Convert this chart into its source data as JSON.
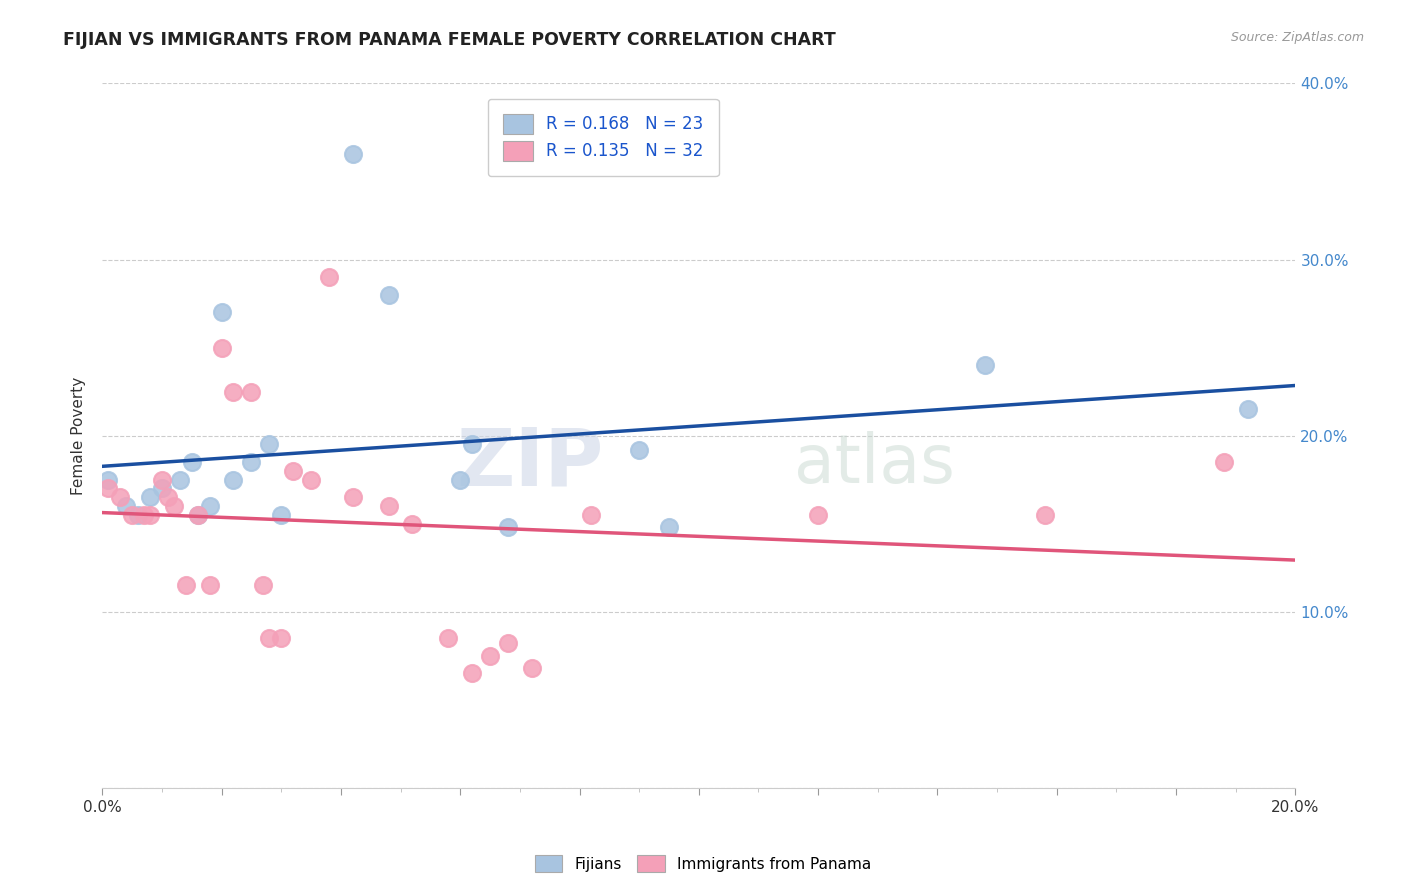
{
  "title": "FIJIAN VS IMMIGRANTS FROM PANAMA FEMALE POVERTY CORRELATION CHART",
  "source": "Source: ZipAtlas.com",
  "ylabel": "Female Poverty",
  "xlim": [
    0.0,
    0.2
  ],
  "ylim": [
    0.0,
    0.4
  ],
  "fijian_R": 0.168,
  "fijian_N": 23,
  "panama_R": 0.135,
  "panama_N": 32,
  "fijian_color": "#a8c4e0",
  "panama_color": "#f4a0b8",
  "fijian_line_color": "#1a4fa0",
  "panama_line_color": "#e0557a",
  "legend_label_fijian": "Fijians",
  "legend_label_panama": "Immigrants from Panama",
  "watermark_1": "ZIP",
  "watermark_2": "atlas",
  "fijian_x": [
    0.001,
    0.004,
    0.006,
    0.008,
    0.01,
    0.013,
    0.015,
    0.016,
    0.018,
    0.02,
    0.022,
    0.025,
    0.028,
    0.03,
    0.042,
    0.048,
    0.06,
    0.062,
    0.068,
    0.09,
    0.095,
    0.148,
    0.192
  ],
  "fijian_y": [
    0.175,
    0.16,
    0.155,
    0.165,
    0.17,
    0.175,
    0.185,
    0.155,
    0.16,
    0.27,
    0.175,
    0.185,
    0.195,
    0.155,
    0.36,
    0.28,
    0.175,
    0.195,
    0.148,
    0.192,
    0.148,
    0.24,
    0.215
  ],
  "panama_x": [
    0.001,
    0.003,
    0.005,
    0.007,
    0.008,
    0.01,
    0.011,
    0.012,
    0.014,
    0.016,
    0.018,
    0.02,
    0.022,
    0.025,
    0.027,
    0.028,
    0.03,
    0.032,
    0.035,
    0.038,
    0.042,
    0.048,
    0.052,
    0.058,
    0.062,
    0.065,
    0.068,
    0.072,
    0.082,
    0.12,
    0.158,
    0.188
  ],
  "panama_y": [
    0.17,
    0.165,
    0.155,
    0.155,
    0.155,
    0.175,
    0.165,
    0.16,
    0.115,
    0.155,
    0.115,
    0.25,
    0.225,
    0.225,
    0.115,
    0.085,
    0.085,
    0.18,
    0.175,
    0.29,
    0.165,
    0.16,
    0.15,
    0.085,
    0.065,
    0.075,
    0.082,
    0.068,
    0.155,
    0.155,
    0.155,
    0.185
  ]
}
